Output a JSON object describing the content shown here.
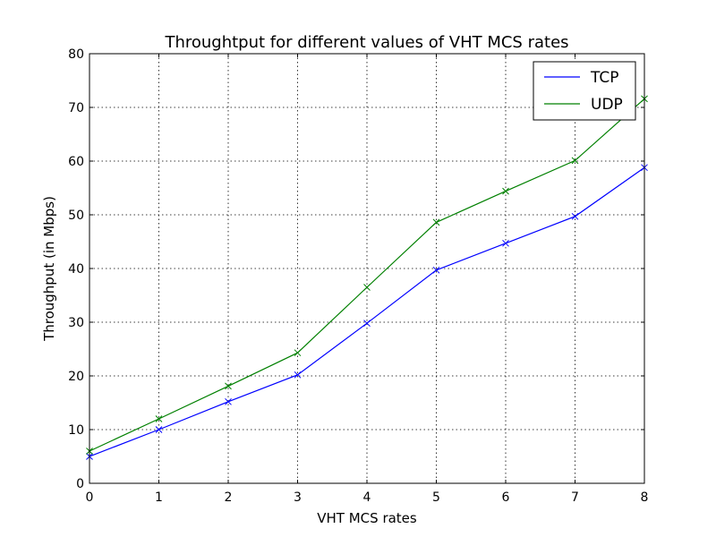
{
  "chart_data": {
    "type": "line",
    "title": "Throughtput for different values of VHT MCS rates",
    "xlabel": "VHT MCS rates",
    "ylabel": "Throughput (in Mbps)",
    "xlim": [
      0,
      8
    ],
    "ylim": [
      0,
      80
    ],
    "xticks": [
      "0",
      "1",
      "2",
      "3",
      "4",
      "5",
      "6",
      "7",
      "8"
    ],
    "yticks": [
      "0",
      "10",
      "20",
      "30",
      "40",
      "50",
      "60",
      "70",
      "80"
    ],
    "grid": true,
    "legend_position": "top-right",
    "x": [
      0,
      1,
      2,
      3,
      4,
      5,
      6,
      7,
      8
    ],
    "series": [
      {
        "name": "TCP",
        "color": "#0000ff",
        "marker": "x",
        "values": [
          5.0,
          10.0,
          15.2,
          20.2,
          29.8,
          39.7,
          44.7,
          49.7,
          58.8
        ]
      },
      {
        "name": "UDP",
        "color": "#008000",
        "marker": "x",
        "values": [
          6.0,
          12.0,
          18.1,
          24.3,
          36.5,
          48.6,
          54.4,
          60.1,
          71.6
        ]
      }
    ]
  }
}
